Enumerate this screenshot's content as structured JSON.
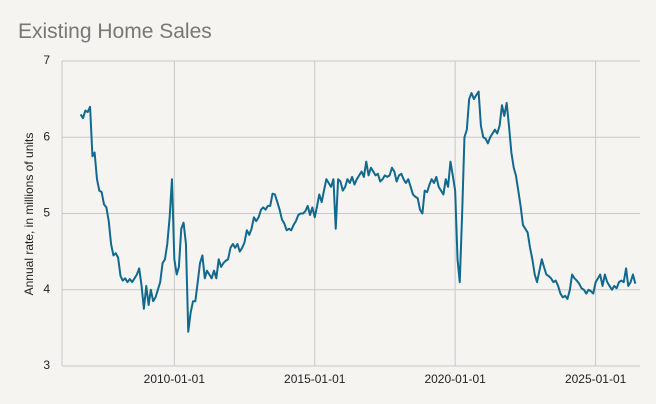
{
  "chart_data": {
    "type": "line",
    "title": "Existing Home Sales",
    "y_label": "Annual rate, in millions of units",
    "x": [
      "2006-09-01",
      "2006-10-01",
      "2006-11-01",
      "2006-12-01",
      "2007-01-01",
      "2007-02-01",
      "2007-03-01",
      "2007-04-01",
      "2007-05-01",
      "2007-06-01",
      "2007-07-01",
      "2007-08-01",
      "2007-09-01",
      "2007-10-01",
      "2007-11-01",
      "2007-12-01",
      "2008-01-01",
      "2008-02-01",
      "2008-03-01",
      "2008-04-01",
      "2008-05-01",
      "2008-06-01",
      "2008-07-01",
      "2008-08-01",
      "2008-09-01",
      "2008-10-01",
      "2008-11-01",
      "2008-12-01",
      "2009-01-01",
      "2009-02-01",
      "2009-03-01",
      "2009-04-01",
      "2009-05-01",
      "2009-06-01",
      "2009-07-01",
      "2009-08-01",
      "2009-09-01",
      "2009-10-01",
      "2009-11-01",
      "2009-12-01",
      "2010-01-01",
      "2010-02-01",
      "2010-03-01",
      "2010-04-01",
      "2010-05-01",
      "2010-06-01",
      "2010-07-01",
      "2010-08-01",
      "2010-09-01",
      "2010-10-01",
      "2010-11-01",
      "2010-12-01",
      "2011-01-01",
      "2011-02-01",
      "2011-03-01",
      "2011-04-01",
      "2011-05-01",
      "2011-06-01",
      "2011-07-01",
      "2011-08-01",
      "2011-09-01",
      "2011-10-01",
      "2011-11-01",
      "2011-12-01",
      "2012-01-01",
      "2012-02-01",
      "2012-03-01",
      "2012-04-01",
      "2012-05-01",
      "2012-06-01",
      "2012-07-01",
      "2012-08-01",
      "2012-09-01",
      "2012-10-01",
      "2012-11-01",
      "2012-12-01",
      "2013-01-01",
      "2013-02-01",
      "2013-03-01",
      "2013-04-01",
      "2013-05-01",
      "2013-06-01",
      "2013-07-01",
      "2013-08-01",
      "2013-09-01",
      "2013-10-01",
      "2013-11-01",
      "2013-12-01",
      "2014-01-01",
      "2014-02-01",
      "2014-03-01",
      "2014-04-01",
      "2014-05-01",
      "2014-06-01",
      "2014-07-01",
      "2014-08-01",
      "2014-09-01",
      "2014-10-01",
      "2014-11-01",
      "2014-12-01",
      "2015-01-01",
      "2015-02-01",
      "2015-03-01",
      "2015-04-01",
      "2015-05-01",
      "2015-06-01",
      "2015-07-01",
      "2015-08-01",
      "2015-09-01",
      "2015-10-01",
      "2015-11-01",
      "2015-12-01",
      "2016-01-01",
      "2016-02-01",
      "2016-03-01",
      "2016-04-01",
      "2016-05-01",
      "2016-06-01",
      "2016-07-01",
      "2016-08-01",
      "2016-09-01",
      "2016-10-01",
      "2016-11-01",
      "2016-12-01",
      "2017-01-01",
      "2017-02-01",
      "2017-03-01",
      "2017-04-01",
      "2017-05-01",
      "2017-06-01",
      "2017-07-01",
      "2017-08-01",
      "2017-09-01",
      "2017-10-01",
      "2017-11-01",
      "2017-12-01",
      "2018-01-01",
      "2018-02-01",
      "2018-03-01",
      "2018-04-01",
      "2018-05-01",
      "2018-06-01",
      "2018-07-01",
      "2018-08-01",
      "2018-09-01",
      "2018-10-01",
      "2018-11-01",
      "2018-12-01",
      "2019-01-01",
      "2019-02-01",
      "2019-03-01",
      "2019-04-01",
      "2019-05-01",
      "2019-06-01",
      "2019-07-01",
      "2019-08-01",
      "2019-09-01",
      "2019-10-01",
      "2019-11-01",
      "2019-12-01",
      "2020-01-01",
      "2020-02-01",
      "2020-03-01",
      "2020-04-01",
      "2020-05-01",
      "2020-06-01",
      "2020-07-01",
      "2020-08-01",
      "2020-09-01",
      "2020-10-01",
      "2020-11-01",
      "2020-12-01",
      "2021-01-01",
      "2021-02-01",
      "2021-03-01",
      "2021-04-01",
      "2021-05-01",
      "2021-06-01",
      "2021-07-01",
      "2021-08-01",
      "2021-09-01",
      "2021-10-01",
      "2021-11-01",
      "2021-12-01",
      "2022-01-01",
      "2022-02-01",
      "2022-03-01",
      "2022-04-01",
      "2022-05-01",
      "2022-06-01",
      "2022-07-01",
      "2022-08-01",
      "2022-09-01",
      "2022-10-01",
      "2022-11-01",
      "2022-12-01",
      "2023-01-01",
      "2023-02-01",
      "2023-03-01",
      "2023-04-01",
      "2023-05-01",
      "2023-06-01",
      "2023-07-01",
      "2023-08-01",
      "2023-09-01",
      "2023-10-01",
      "2023-11-01",
      "2023-12-01",
      "2024-01-01",
      "2024-02-01",
      "2024-03-01",
      "2024-04-01",
      "2024-05-01",
      "2024-06-01",
      "2024-07-01",
      "2024-08-01",
      "2024-09-01",
      "2024-10-01",
      "2024-11-01",
      "2024-12-01",
      "2025-01-01",
      "2025-02-01",
      "2025-03-01",
      "2025-04-01",
      "2025-05-01",
      "2025-06-01",
      "2025-07-01",
      "2025-08-01",
      "2025-09-01",
      "2025-10-01",
      "2025-11-01",
      "2025-12-01",
      "2026-01-01",
      "2026-02-01",
      "2026-03-01",
      "2026-04-01",
      "2026-05-01",
      "2026-06-01"
    ],
    "series": [
      {
        "name": "Existing Home Sales",
        "color": "#11698e",
        "values": [
          6.3,
          6.25,
          6.35,
          6.33,
          6.4,
          5.75,
          5.8,
          5.45,
          5.3,
          5.28,
          5.12,
          5.08,
          4.9,
          4.6,
          4.45,
          4.48,
          4.42,
          4.18,
          4.12,
          4.15,
          4.1,
          4.14,
          4.1,
          4.15,
          4.2,
          4.28,
          4.05,
          3.75,
          4.05,
          3.8,
          4.0,
          3.85,
          3.9,
          4.0,
          4.1,
          4.35,
          4.4,
          4.6,
          4.95,
          5.45,
          4.4,
          4.2,
          4.3,
          4.8,
          4.88,
          4.6,
          3.45,
          3.7,
          3.85,
          3.85,
          4.1,
          4.35,
          4.45,
          4.15,
          4.25,
          4.2,
          4.15,
          4.25,
          4.15,
          4.4,
          4.3,
          4.35,
          4.38,
          4.4,
          4.55,
          4.6,
          4.55,
          4.6,
          4.5,
          4.55,
          4.62,
          4.78,
          4.72,
          4.8,
          4.95,
          4.9,
          4.95,
          5.05,
          5.08,
          5.05,
          5.1,
          5.1,
          5.26,
          5.25,
          5.15,
          5.05,
          4.92,
          4.87,
          4.78,
          4.8,
          4.78,
          4.85,
          4.9,
          4.98,
          5.0,
          5.0,
          5.03,
          5.1,
          4.98,
          5.08,
          4.95,
          5.1,
          5.25,
          5.15,
          5.3,
          5.45,
          5.4,
          5.35,
          5.45,
          4.8,
          5.45,
          5.42,
          5.3,
          5.35,
          5.45,
          5.4,
          5.48,
          5.38,
          5.45,
          5.5,
          5.55,
          5.48,
          5.68,
          5.5,
          5.6,
          5.55,
          5.5,
          5.52,
          5.42,
          5.45,
          5.5,
          5.48,
          5.5,
          5.6,
          5.55,
          5.42,
          5.5,
          5.52,
          5.45,
          5.4,
          5.45,
          5.35,
          5.25,
          5.22,
          5.2,
          5.05,
          5.0,
          5.3,
          5.28,
          5.38,
          5.45,
          5.4,
          5.48,
          5.35,
          5.3,
          5.25,
          5.45,
          5.35,
          5.68,
          5.5,
          5.3,
          4.4,
          4.1,
          5.0,
          6.0,
          6.1,
          6.5,
          6.58,
          6.5,
          6.55,
          6.6,
          6.15,
          6.0,
          5.98,
          5.92,
          6.0,
          6.05,
          6.1,
          6.05,
          6.15,
          6.42,
          6.28,
          6.45,
          6.15,
          5.8,
          5.6,
          5.5,
          5.3,
          5.1,
          4.85,
          4.8,
          4.75,
          4.55,
          4.4,
          4.2,
          4.1,
          4.25,
          4.4,
          4.3,
          4.2,
          4.18,
          4.15,
          4.1,
          4.12,
          4.05,
          3.95,
          3.9,
          3.92,
          3.88,
          4.0,
          4.2,
          4.15,
          4.12,
          4.08,
          4.02,
          4.0,
          3.95,
          4.0,
          3.98,
          3.95,
          4.1,
          4.15,
          4.2,
          4.05,
          4.2,
          4.1,
          4.05,
          4.0,
          4.05,
          4.02,
          4.1,
          4.12,
          4.1,
          4.28,
          4.05,
          4.1,
          4.2,
          4.08
        ]
      }
    ],
    "xlim": [
      "2006-01-01",
      "2026-08-01"
    ],
    "xticks": [
      "2010-01-01",
      "2015-01-01",
      "2020-01-01",
      "2025-01-01"
    ],
    "ylim": [
      3,
      7
    ],
    "yticks": [
      3,
      4,
      5,
      6,
      7
    ],
    "grid": true
  }
}
